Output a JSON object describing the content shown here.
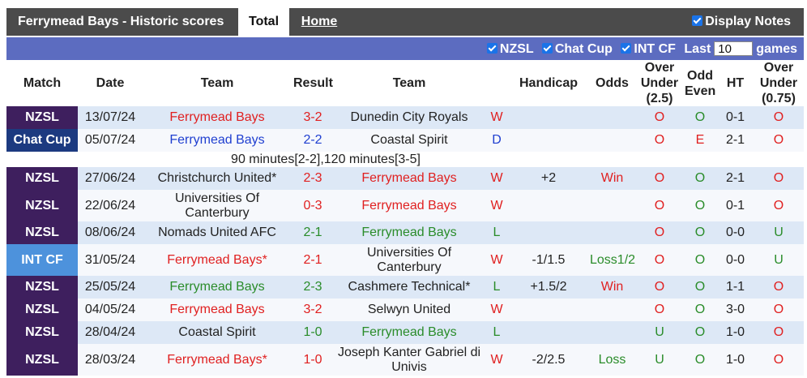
{
  "top": {
    "title": "Ferrymead Bays - Historic scores",
    "tabs": [
      "Total",
      "Home"
    ],
    "display_notes": "Display Notes"
  },
  "filters": {
    "options": [
      "NZSL",
      "Chat Cup",
      "INT CF"
    ],
    "last": "Last",
    "count": "10",
    "games": "games"
  },
  "match_colors": {
    "NZSL": "#3e1f5e",
    "Chat Cup": "#1c3a80",
    "INT CF": "#4d92dc"
  },
  "ou_colors": {
    "O": "#e02020",
    "U": "#2a8c2a"
  },
  "oe_colors": {
    "O": "#2a8c2a",
    "E": "#e02020"
  },
  "table": {
    "headers": [
      "Match",
      "Date",
      "Team",
      "Result",
      "Team",
      "Handicap",
      "Odds",
      "Over Under (2.5)",
      "Odd Even",
      "HT",
      "Over Under (0.75)"
    ],
    "rows": [
      {
        "match": "NZSL",
        "date": "13/07/24",
        "home": "Ferrymead Bays",
        "score": "3-2",
        "away": "Dunedin City Royals",
        "result": "W",
        "handicap": null,
        "odds": null,
        "ou": "O",
        "oe": "O",
        "ht": "0-1",
        "ou075": "O",
        "colors": {
          "home": "#e02020",
          "away": "#222222",
          "result": "#e02020",
          "odds": "#222222"
        }
      },
      {
        "match": "Chat Cup",
        "date": "05/07/24",
        "home": "Ferrymead Bays",
        "score": "2-2",
        "away": "Coastal Spirit",
        "result": "D",
        "handicap": null,
        "odds": null,
        "ou": "O",
        "oe": "E",
        "ht": "2-1",
        "ou075": "O",
        "note": "90 minutes[2-2],120 minutes[3-5]",
        "colors": {
          "home": "#1f3fd0",
          "away": "#222222",
          "result": "#1f3fd0",
          "odds": "#222222"
        }
      },
      {
        "match": "NZSL",
        "date": "27/06/24",
        "home": "Christchurch United*",
        "score": "2-3",
        "away": "Ferrymead Bays",
        "result": "W",
        "handicap": "+2",
        "odds": "Win",
        "ou": "O",
        "oe": "O",
        "ht": "2-1",
        "ou075": "O",
        "colors": {
          "home": "#222222",
          "away": "#e02020",
          "result": "#e02020",
          "odds": "#e02020"
        }
      },
      {
        "match": "NZSL",
        "date": "22/06/24",
        "home": "Universities Of Canterbury",
        "score": "0-3",
        "away": "Ferrymead Bays",
        "result": "W",
        "handicap": null,
        "odds": null,
        "ou": "O",
        "oe": "O",
        "ht": "0-1",
        "ou075": "O",
        "colors": {
          "home": "#222222",
          "away": "#e02020",
          "result": "#e02020",
          "odds": "#222222"
        }
      },
      {
        "match": "NZSL",
        "date": "08/06/24",
        "home": "Nomads United AFC",
        "score": "2-1",
        "away": "Ferrymead Bays",
        "result": "L",
        "handicap": null,
        "odds": null,
        "ou": "O",
        "oe": "O",
        "ht": "0-0",
        "ou075": "U",
        "colors": {
          "home": "#222222",
          "away": "#2a8c2a",
          "result": "#2a8c2a",
          "odds": "#222222"
        }
      },
      {
        "match": "INT CF",
        "date": "31/05/24",
        "home": "Ferrymead Bays*",
        "score": "2-1",
        "away": "Universities Of Canterbury",
        "result": "W",
        "handicap": "-1/1.5",
        "odds": "Loss1/2",
        "ou": "O",
        "oe": "O",
        "ht": "0-0",
        "ou075": "U",
        "colors": {
          "home": "#e02020",
          "away": "#222222",
          "result": "#e02020",
          "odds": "#2a8c2a"
        }
      },
      {
        "match": "NZSL",
        "date": "25/05/24",
        "home": "Ferrymead Bays",
        "score": "2-3",
        "away": "Cashmere Technical*",
        "result": "L",
        "handicap": "+1.5/2",
        "odds": "Win",
        "ou": "O",
        "oe": "O",
        "ht": "1-1",
        "ou075": "O",
        "colors": {
          "home": "#2a8c2a",
          "away": "#222222",
          "result": "#2a8c2a",
          "odds": "#e02020"
        }
      },
      {
        "match": "NZSL",
        "date": "04/05/24",
        "home": "Ferrymead Bays",
        "score": "3-2",
        "away": "Selwyn United",
        "result": "W",
        "handicap": null,
        "odds": null,
        "ou": "O",
        "oe": "O",
        "ht": "3-0",
        "ou075": "O",
        "colors": {
          "home": "#e02020",
          "away": "#222222",
          "result": "#e02020",
          "odds": "#222222"
        }
      },
      {
        "match": "NZSL",
        "date": "28/04/24",
        "home": "Coastal Spirit",
        "score": "1-0",
        "away": "Ferrymead Bays",
        "result": "L",
        "handicap": null,
        "odds": null,
        "ou": "U",
        "oe": "O",
        "ht": "1-0",
        "ou075": "O",
        "colors": {
          "home": "#222222",
          "away": "#2a8c2a",
          "result": "#2a8c2a",
          "odds": "#222222"
        }
      },
      {
        "match": "NZSL",
        "date": "28/03/24",
        "home": "Ferrymead Bays*",
        "score": "1-0",
        "away": "Joseph Kanter Gabriel di Univis",
        "result": "W",
        "handicap": "-2/2.5",
        "odds": "Loss",
        "ou": "U",
        "oe": "O",
        "ht": "1-0",
        "ou075": "O",
        "colors": {
          "home": "#e02020",
          "away": "#222222",
          "result": "#e02020",
          "odds": "#2a8c2a"
        }
      }
    ]
  }
}
